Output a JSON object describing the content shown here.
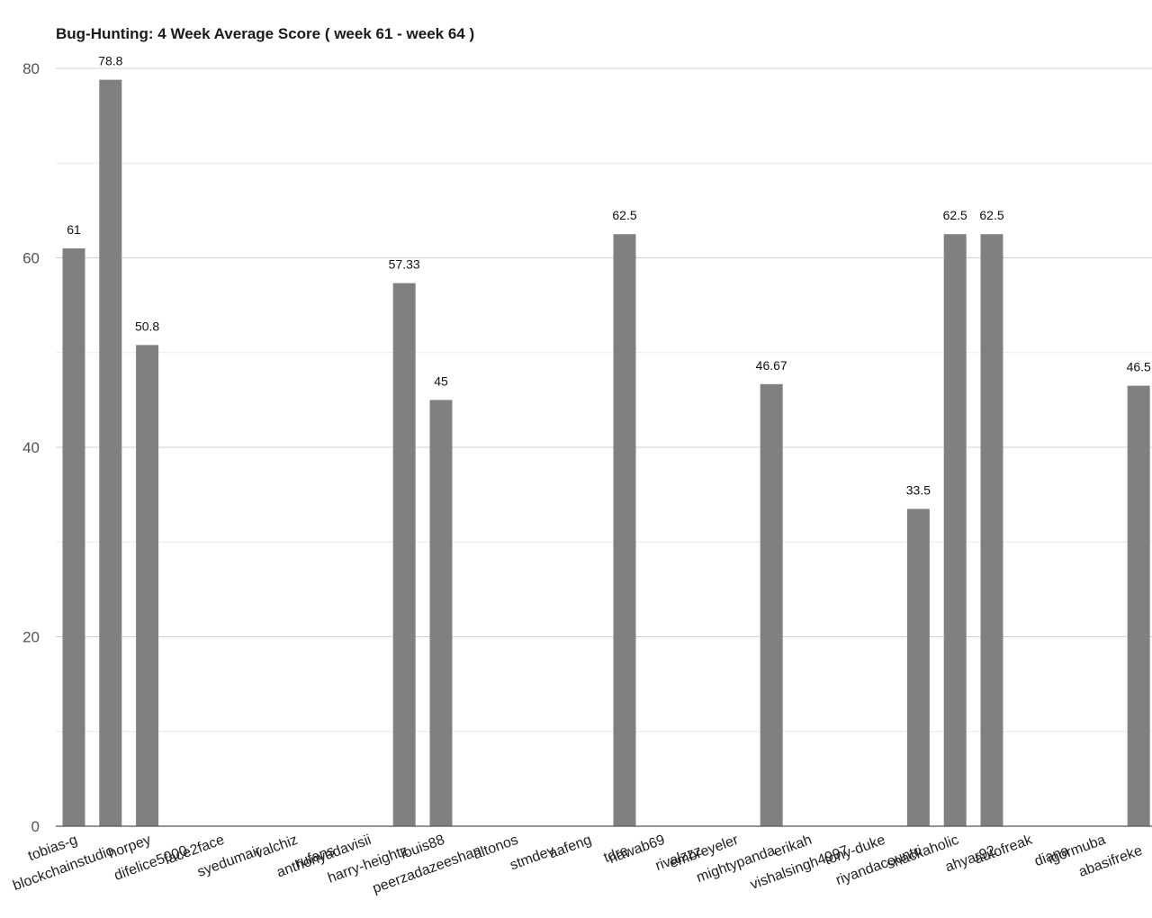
{
  "chart_data": {
    "type": "bar",
    "title": "Bug-Hunting: 4 Week Average Score ( week 61 - week 64 )",
    "xlabel": "",
    "ylabel": "",
    "ylim": [
      0,
      80
    ],
    "yticks": [
      0,
      20,
      40,
      60,
      80
    ],
    "grid": true,
    "legend": "none",
    "bar_color": "#808080",
    "categories": [
      "tobias-g",
      "blockchainstudio",
      "horpey",
      "difelice5000",
      "face2face",
      "syedumair",
      "valchiz",
      "rufans",
      "anthonyadavisii",
      "harry-heightz",
      "louis88",
      "peerzadazeeshan",
      "altonos",
      "stmdev",
      "aafeng",
      "tdre",
      "nawab69",
      "rivalzzz",
      "embreyeler",
      "mightypanda",
      "erikah",
      "vishalsingh4997",
      "tony-duke",
      "riyandacountri",
      "snackaholic",
      "ahyar92",
      "autofreak",
      "diana",
      "igormuba",
      "abasifreke"
    ],
    "values": [
      61,
      78.8,
      50.8,
      0,
      0,
      0,
      0,
      0,
      0,
      57.33,
      45,
      0,
      0,
      0,
      0,
      62.5,
      0,
      0,
      0,
      46.67,
      0,
      0,
      0,
      33.5,
      62.5,
      62.5,
      0,
      0,
      0,
      46.5
    ],
    "data_labels": [
      "61",
      "78.8",
      "50.8",
      "",
      "",
      "",
      "",
      "",
      "",
      "57.33",
      "45",
      "",
      "",
      "",
      "",
      "62.5",
      "",
      "",
      "",
      "46.67",
      "",
      "",
      "",
      "33.5",
      "62.5",
      "62.5",
      "",
      "",
      "",
      "46.5"
    ]
  }
}
